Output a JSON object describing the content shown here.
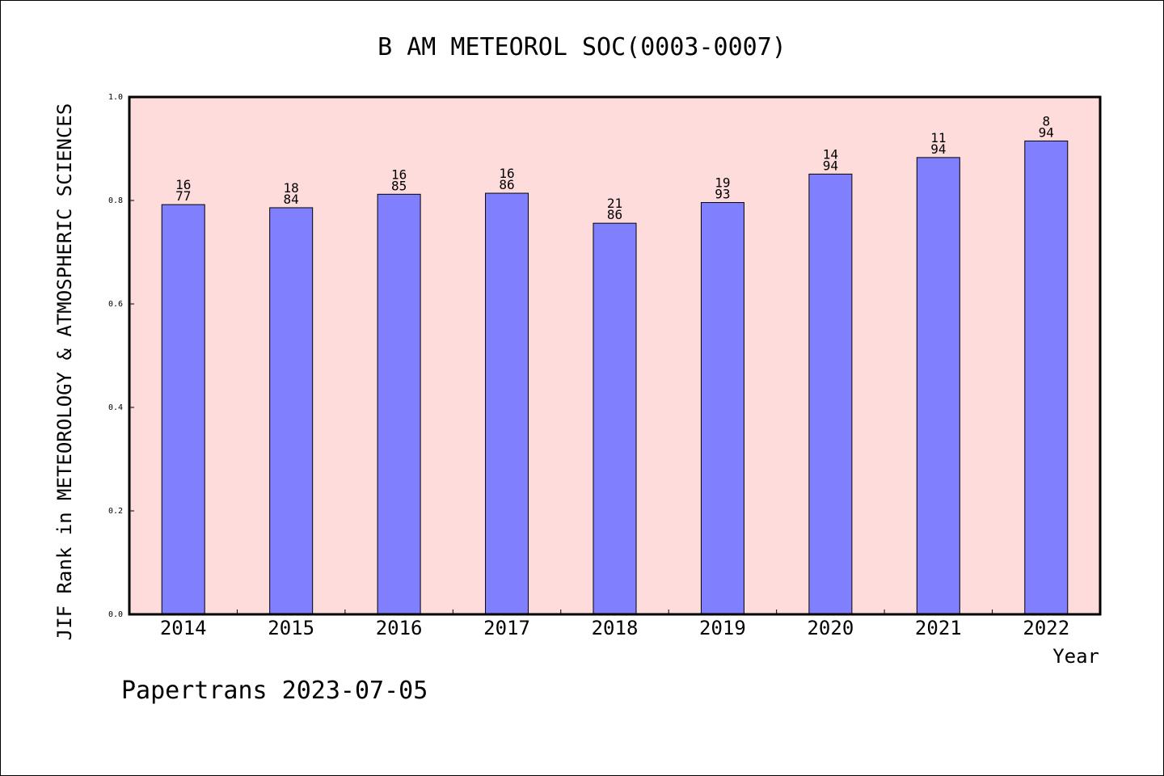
{
  "chart_data": {
    "type": "bar",
    "title": "B AM METEOROL SOC(0003-0007)",
    "xlabel": "Year",
    "ylabel": "JIF Rank in METEOROLOGY & ATMOSPHERIC SCIENCES",
    "ylim": [
      0,
      1.0
    ],
    "yticks": [
      "0.0",
      "0.2",
      "0.4",
      "0.6",
      "0.8",
      "1.0"
    ],
    "categories": [
      "2014",
      "2015",
      "2016",
      "2017",
      "2018",
      "2019",
      "2020",
      "2021",
      "2022"
    ],
    "values": [
      0.792,
      0.786,
      0.812,
      0.814,
      0.756,
      0.796,
      0.851,
      0.883,
      0.915
    ],
    "ranks": [
      "16",
      "18",
      "16",
      "16",
      "21",
      "19",
      "14",
      "11",
      "8"
    ],
    "totals": [
      "77",
      "84",
      "85",
      "86",
      "86",
      "93",
      "94",
      "94",
      "94"
    ],
    "grid": false,
    "legend": "none",
    "colors": {
      "bar": "#8080ff",
      "plot_background": "#ffdcdc",
      "axis": "#000000"
    }
  },
  "footer": {
    "text": "Papertrans 2023-07-05"
  }
}
